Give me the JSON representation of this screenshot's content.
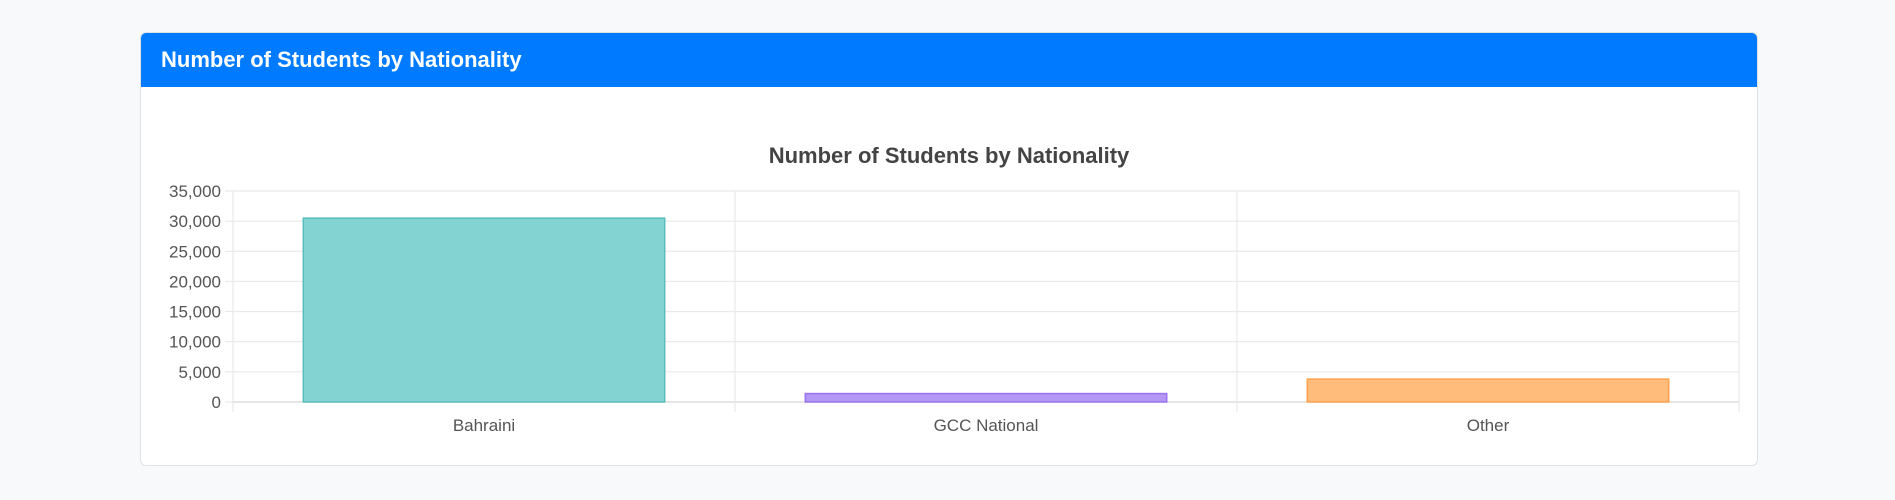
{
  "card": {
    "header_title": "Number of Students by Nationality"
  },
  "chart_data": {
    "type": "bar",
    "title": "Number of Students by Nationality",
    "xlabel": "",
    "ylabel": "",
    "categories": [
      "Bahraini",
      "GCC National",
      "Other"
    ],
    "values": [
      30500,
      1400,
      3800
    ],
    "ylim": [
      0,
      35000
    ],
    "yticks": [
      0,
      5000,
      10000,
      15000,
      20000,
      25000,
      30000,
      35000
    ],
    "grid": true,
    "legend": "none",
    "colors": {
      "fill": [
        "#84d3d3",
        "#b497f5",
        "#ffbc7a"
      ],
      "stroke": [
        "#5bbcbc",
        "#9b72ef",
        "#ffa14f"
      ]
    }
  }
}
